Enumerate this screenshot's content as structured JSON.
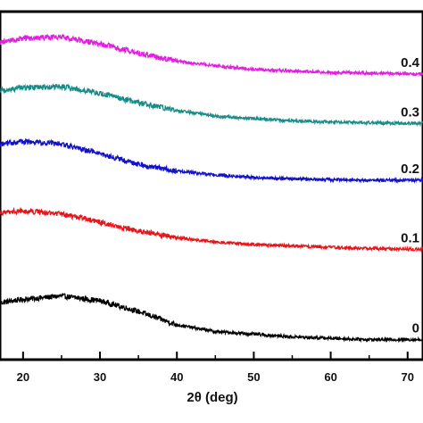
{
  "chart_data": {
    "type": "line",
    "title": "",
    "xlabel": "2θ (deg)",
    "ylabel": "",
    "xlim": [
      17,
      72
    ],
    "ylim": [
      0,
      5.2
    ],
    "x_ticks": [
      20,
      30,
      40,
      50,
      60,
      70
    ],
    "x_tick_labels": [
      "20",
      "30",
      "40",
      "50",
      "60",
      "70"
    ],
    "grid": false,
    "legend": "none",
    "series": [
      {
        "name": "0",
        "color": "#000000",
        "x": [
          17,
          20,
          25,
          30,
          35,
          40,
          45,
          50,
          55,
          60,
          65,
          70,
          72
        ],
        "y": [
          0.85,
          0.9,
          0.95,
          0.88,
          0.72,
          0.52,
          0.42,
          0.38,
          0.34,
          0.32,
          0.3,
          0.3,
          0.3
        ]
      },
      {
        "name": "0.1",
        "color": "#e8141a",
        "x": [
          17,
          20,
          25,
          30,
          35,
          40,
          45,
          50,
          55,
          60,
          65,
          70,
          72
        ],
        "y": [
          2.2,
          2.22,
          2.18,
          2.05,
          1.92,
          1.82,
          1.76,
          1.72,
          1.7,
          1.68,
          1.66,
          1.65,
          1.65
        ]
      },
      {
        "name": "0.2",
        "color": "#1212c8",
        "x": [
          17,
          20,
          25,
          30,
          35,
          40,
          45,
          50,
          55,
          60,
          65,
          70,
          72
        ],
        "y": [
          3.22,
          3.26,
          3.22,
          3.08,
          2.92,
          2.82,
          2.76,
          2.72,
          2.7,
          2.69,
          2.68,
          2.68,
          2.68
        ]
      },
      {
        "name": "0.3",
        "color": "#178c88",
        "x": [
          17,
          20,
          25,
          30,
          35,
          40,
          45,
          50,
          55,
          60,
          65,
          70,
          72
        ],
        "y": [
          4.02,
          4.06,
          4.08,
          3.98,
          3.84,
          3.72,
          3.64,
          3.6,
          3.57,
          3.55,
          3.54,
          3.53,
          3.53
        ]
      },
      {
        "name": "0.4",
        "color": "#e21ee2",
        "x": [
          17,
          20,
          25,
          30,
          35,
          40,
          45,
          50,
          55,
          60,
          65,
          70,
          72
        ],
        "y": [
          4.74,
          4.8,
          4.82,
          4.72,
          4.58,
          4.46,
          4.39,
          4.34,
          4.31,
          4.29,
          4.28,
          4.27,
          4.27
        ]
      }
    ]
  }
}
